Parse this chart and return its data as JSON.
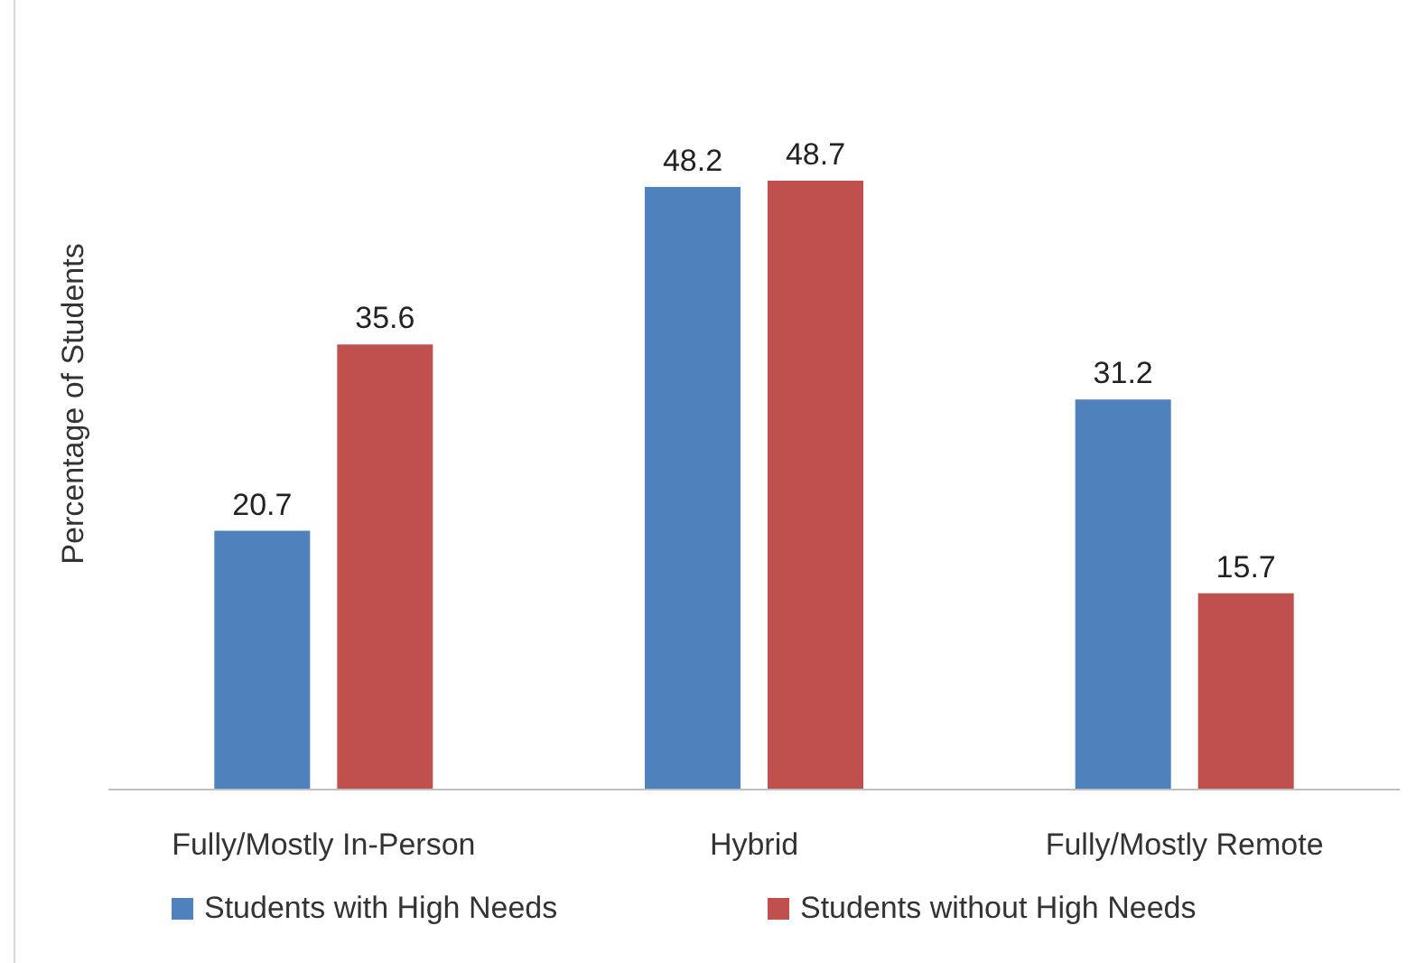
{
  "chart_data": {
    "type": "bar",
    "ylabel": "Percentage of Students",
    "categories": [
      "Fully/Mostly In-Person",
      "Hybrid",
      "Fully/Mostly Remote"
    ],
    "series": [
      {
        "name": "Students with High Needs",
        "color": "#4f81bd",
        "values": [
          20.7,
          48.2,
          31.2
        ]
      },
      {
        "name": "Students without High Needs",
        "color": "#c0504d",
        "values": [
          35.6,
          48.7,
          15.7
        ]
      }
    ],
    "tick_labels": "x",
    "data_labels": true,
    "legend": "bottom",
    "grid": false
  }
}
